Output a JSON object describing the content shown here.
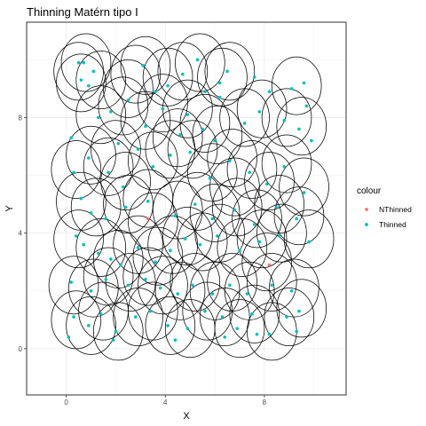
{
  "chart_data": {
    "type": "scatter",
    "title": "Thinning Matérn tipo I",
    "xlabel": "X",
    "ylabel": "Y",
    "xlim": [
      -1.6,
      11.3
    ],
    "ylim": [
      -1.6,
      11.3
    ],
    "x_ticks": [
      0,
      4,
      8
    ],
    "y_ticks": [
      0,
      4,
      8
    ],
    "x_tick_labels": [
      "0",
      "4",
      "8"
    ],
    "y_tick_labels": [
      "0",
      "4",
      "8"
    ],
    "circle_radius": 1,
    "grid": true,
    "legend": {
      "title": "colour",
      "position": "right",
      "entries": [
        {
          "label": "NThinned",
          "color": "#F8766D"
        },
        {
          "label": "Thinned",
          "color": "#00BFC4"
        }
      ]
    },
    "series": [
      {
        "name": "NThinned",
        "color": "#F8766D",
        "points": [
          [
            3.3,
            4.5
          ],
          [
            8.2,
            2.9
          ]
        ]
      },
      {
        "name": "Thinned",
        "color": "#00BFC4",
        "points": [
          [
            0.5,
            9.9
          ],
          [
            0.7,
            9.9
          ],
          [
            0.6,
            9.3
          ],
          [
            0.9,
            9.1
          ],
          [
            2.5,
            8.6
          ],
          [
            3.1,
            9.8
          ],
          [
            4.1,
            9.1
          ],
          [
            4.7,
            9.5
          ],
          [
            5.3,
            10.0
          ],
          [
            6.2,
            9.2
          ],
          [
            6.5,
            9.6
          ],
          [
            9.1,
            9.0
          ],
          [
            9.6,
            9.2
          ],
          [
            1.3,
            8.0
          ],
          [
            1.8,
            8.2
          ],
          [
            3.2,
            7.7
          ],
          [
            3.9,
            8.3
          ],
          [
            4.9,
            8.1
          ],
          [
            5.5,
            7.6
          ],
          [
            6.0,
            7.2
          ],
          [
            7.2,
            7.8
          ],
          [
            7.8,
            8.2
          ],
          [
            8.8,
            7.9
          ],
          [
            9.4,
            7.6
          ],
          [
            9.9,
            7.2
          ],
          [
            0.3,
            6.1
          ],
          [
            0.9,
            6.6
          ],
          [
            1.7,
            6.1
          ],
          [
            2.3,
            5.6
          ],
          [
            3.5,
            6.3
          ],
          [
            4.2,
            6.7
          ],
          [
            5.0,
            6.8
          ],
          [
            5.8,
            5.9
          ],
          [
            6.6,
            6.5
          ],
          [
            7.4,
            6.1
          ],
          [
            8.1,
            5.7
          ],
          [
            8.8,
            6.3
          ],
          [
            9.6,
            5.4
          ],
          [
            0.6,
            5.2
          ],
          [
            1.0,
            4.7
          ],
          [
            1.6,
            4.5
          ],
          [
            2.4,
            4.9
          ],
          [
            3.3,
            5.1
          ],
          [
            4.4,
            4.6
          ],
          [
            5.2,
            5.0
          ],
          [
            5.9,
            4.5
          ],
          [
            6.8,
            4.8
          ],
          [
            7.6,
            4.3
          ],
          [
            8.5,
            4.9
          ],
          [
            9.3,
            4.5
          ],
          [
            0.4,
            3.9
          ],
          [
            0.7,
            3.6
          ],
          [
            1.3,
            3.3
          ],
          [
            1.8,
            3.1
          ],
          [
            2.2,
            2.9
          ],
          [
            2.9,
            3.5
          ],
          [
            3.6,
            3.0
          ],
          [
            4.2,
            3.4
          ],
          [
            4.8,
            3.8
          ],
          [
            5.4,
            3.6
          ],
          [
            6.1,
            3.9
          ],
          [
            7.0,
            3.4
          ],
          [
            7.8,
            3.7
          ],
          [
            8.6,
            3.9
          ],
          [
            9.8,
            3.7
          ],
          [
            0.2,
            2.3
          ],
          [
            1.0,
            2.0
          ],
          [
            1.6,
            2.4
          ],
          [
            2.5,
            2.2
          ],
          [
            3.2,
            2.4
          ],
          [
            3.8,
            2.1
          ],
          [
            4.5,
            1.9
          ],
          [
            5.1,
            2.2
          ],
          [
            5.9,
            1.9
          ],
          [
            6.6,
            2.2
          ],
          [
            7.3,
            1.9
          ],
          [
            8.3,
            2.2
          ],
          [
            9.1,
            2.0
          ],
          [
            0.3,
            1.1
          ],
          [
            0.9,
            0.8
          ],
          [
            1.4,
            1.2
          ],
          [
            2.0,
            0.6
          ],
          [
            2.8,
            1.1
          ],
          [
            3.4,
            1.3
          ],
          [
            4.1,
            0.8
          ],
          [
            4.9,
            0.7
          ],
          [
            5.6,
            1.3
          ],
          [
            6.3,
            1.1
          ],
          [
            6.9,
            0.7
          ],
          [
            7.5,
            1.2
          ],
          [
            8.2,
            0.5
          ],
          [
            8.9,
            1.1
          ],
          [
            9.4,
            1.3
          ],
          [
            0.1,
            0.4
          ],
          [
            1.9,
            0.3
          ],
          [
            4.4,
            0.3
          ],
          [
            6.4,
            0.4
          ],
          [
            7.7,
            0.5
          ],
          [
            9.3,
            0.6
          ],
          [
            2.1,
            7.1
          ],
          [
            2.9,
            6.9
          ],
          [
            4.6,
            7.4
          ],
          [
            6.2,
            8.7
          ],
          [
            7.6,
            9.4
          ],
          [
            8.2,
            8.9
          ],
          [
            9.7,
            8.4
          ],
          [
            0.2,
            7.3
          ],
          [
            1.1,
            9.6
          ],
          [
            5.6,
            8.9
          ],
          [
            3.6,
            8.9
          ]
        ]
      }
    ],
    "circle_centers": [
      [
        0.5,
        9.6
      ],
      [
        0.8,
        9.9
      ],
      [
        1.4,
        9.3
      ],
      [
        2.5,
        9.0
      ],
      [
        3.2,
        9.8
      ],
      [
        4.1,
        9.4
      ],
      [
        4.7,
        9.6
      ],
      [
        5.4,
        9.9
      ],
      [
        6.3,
        9.4
      ],
      [
        6.6,
        9.6
      ],
      [
        9.3,
        9.1
      ],
      [
        1.4,
        8.1
      ],
      [
        2.3,
        8.4
      ],
      [
        3.2,
        7.9
      ],
      [
        3.9,
        8.5
      ],
      [
        4.9,
        8.3
      ],
      [
        5.6,
        7.8
      ],
      [
        6.1,
        7.4
      ],
      [
        7.2,
        8.0
      ],
      [
        7.9,
        8.3
      ],
      [
        8.9,
        8.0
      ],
      [
        9.5,
        7.7
      ],
      [
        0.4,
        6.2
      ],
      [
        1.0,
        6.7
      ],
      [
        1.7,
        6.3
      ],
      [
        2.4,
        5.8
      ],
      [
        3.5,
        6.5
      ],
      [
        4.2,
        6.9
      ],
      [
        5.1,
        6.9
      ],
      [
        5.9,
        6.1
      ],
      [
        6.7,
        6.6
      ],
      [
        7.5,
        6.2
      ],
      [
        8.2,
        5.8
      ],
      [
        8.9,
        6.4
      ],
      [
        9.6,
        5.6
      ],
      [
        0.6,
        5.1
      ],
      [
        1.2,
        4.9
      ],
      [
        2.5,
        5.0
      ],
      [
        3.3,
        5.2
      ],
      [
        4.5,
        4.8
      ],
      [
        5.3,
        5.1
      ],
      [
        6.0,
        4.7
      ],
      [
        6.9,
        4.9
      ],
      [
        7.7,
        4.5
      ],
      [
        8.6,
        5.0
      ],
      [
        9.4,
        4.6
      ],
      [
        0.5,
        3.8
      ],
      [
        1.4,
        3.5
      ],
      [
        2.1,
        3.1
      ],
      [
        2.9,
        3.6
      ],
      [
        3.7,
        3.2
      ],
      [
        4.3,
        3.6
      ],
      [
        4.9,
        3.9
      ],
      [
        5.5,
        3.7
      ],
      [
        6.2,
        4.0
      ],
      [
        7.1,
        3.5
      ],
      [
        7.9,
        3.8
      ],
      [
        8.7,
        4.0
      ],
      [
        9.8,
        3.8
      ],
      [
        0.3,
        2.2
      ],
      [
        1.1,
        2.1
      ],
      [
        1.7,
        2.5
      ],
      [
        2.6,
        2.3
      ],
      [
        3.3,
        2.5
      ],
      [
        3.9,
        2.2
      ],
      [
        4.6,
        2.0
      ],
      [
        5.2,
        2.3
      ],
      [
        6.0,
        2.0
      ],
      [
        6.7,
        2.3
      ],
      [
        7.4,
        2.0
      ],
      [
        8.3,
        2.3
      ],
      [
        9.2,
        2.1
      ],
      [
        0.4,
        1.0
      ],
      [
        1.0,
        0.8
      ],
      [
        1.5,
        1.3
      ],
      [
        2.1,
        0.6
      ],
      [
        2.9,
        1.1
      ],
      [
        3.5,
        1.3
      ],
      [
        4.2,
        0.8
      ],
      [
        5.0,
        0.7
      ],
      [
        5.7,
        1.3
      ],
      [
        6.4,
        1.1
      ],
      [
        7.0,
        0.7
      ],
      [
        7.6,
        1.2
      ],
      [
        8.3,
        0.6
      ],
      [
        9.0,
        1.1
      ],
      [
        9.5,
        1.4
      ],
      [
        2.8,
        9.5
      ],
      [
        3.5,
        4.4
      ],
      [
        8.1,
        3.0
      ],
      [
        0.6,
        9.2
      ],
      [
        4.5,
        7.3
      ],
      [
        6.8,
        5.6
      ],
      [
        2.0,
        6.9
      ]
    ]
  }
}
